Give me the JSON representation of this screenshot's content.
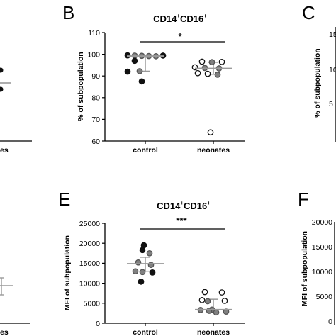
{
  "panels": {
    "B": {
      "letter": "B"
    },
    "C": {
      "letter": "C"
    },
    "E": {
      "letter": "E"
    },
    "F": {
      "letter": "F"
    }
  },
  "partial": {
    "A": {
      "xtick": "es"
    },
    "C": {
      "ylabel": "% of subpopulation",
      "ytick_top": "15",
      "ytick_mid": "10",
      "ytick_low": "5"
    },
    "D": {
      "xtick": "es"
    },
    "F": {
      "ylabel": "MFI of subpopulation",
      "yticks": [
        "20000",
        "15000",
        "10000",
        "5000",
        "0"
      ]
    }
  },
  "colors": {
    "dark": "#111111",
    "gray": "#808080",
    "median": "#9a9a9a",
    "open_fill": "#ffffff"
  },
  "chart_data": [
    {
      "panel": "B",
      "type": "scatter",
      "title_main": "CD14",
      "title_sup1": "+",
      "title_mid": "CD16",
      "title_sup2": "+",
      "ylabel": "% of subpopulation",
      "ylim": [
        60,
        110
      ],
      "yticks": [
        60,
        70,
        80,
        90,
        100,
        110
      ],
      "categories": [
        "control",
        "neonates"
      ],
      "significance": "*",
      "groups": [
        {
          "category": "control",
          "median": 99.2,
          "q1": 92.2,
          "q3": 99.4,
          "points": [
            {
              "v": 99.5,
              "s": "dark"
            },
            {
              "v": 99.4,
              "s": "gray"
            },
            {
              "v": 99.3,
              "s": "gray"
            },
            {
              "v": 99.2,
              "s": "gray"
            },
            {
              "v": 99.1,
              "s": "gray"
            },
            {
              "v": 99.4,
              "s": "dark"
            },
            {
              "v": 97.0,
              "s": "dark"
            },
            {
              "v": 92.2,
              "s": "gray"
            },
            {
              "v": 92.0,
              "s": "dark"
            },
            {
              "v": 87.5,
              "s": "dark"
            }
          ]
        },
        {
          "category": "neonates",
          "median": 93.5,
          "q1": 90.8,
          "q3": 96.3,
          "points": [
            {
              "v": 96.6,
              "s": "open"
            },
            {
              "v": 96.4,
              "s": "gray"
            },
            {
              "v": 96.5,
              "s": "open"
            },
            {
              "v": 94.0,
              "s": "open"
            },
            {
              "v": 93.7,
              "s": "gray"
            },
            {
              "v": 93.5,
              "s": "gray"
            },
            {
              "v": 91.3,
              "s": "open"
            },
            {
              "v": 91.0,
              "s": "open"
            },
            {
              "v": 90.6,
              "s": "gray"
            },
            {
              "v": 64.0,
              "s": "open"
            }
          ]
        }
      ]
    },
    {
      "panel": "E",
      "type": "scatter",
      "title_main": "CD14",
      "title_sup1": "+",
      "title_mid": "CD16",
      "title_sup2": "+",
      "ylabel": "MFI of subpopulation",
      "ylim": [
        0,
        25000
      ],
      "yticks": [
        0,
        5000,
        10000,
        15000,
        20000,
        25000
      ],
      "categories": [
        "control",
        "neonates"
      ],
      "significance": "***",
      "groups": [
        {
          "category": "control",
          "median": 14900,
          "q1": 13000,
          "q3": 16500,
          "points": [
            {
              "v": 19500,
              "s": "dark"
            },
            {
              "v": 18300,
              "s": "dark"
            },
            {
              "v": 17500,
              "s": "gray"
            },
            {
              "v": 15200,
              "s": "gray"
            },
            {
              "v": 14600,
              "s": "gray"
            },
            {
              "v": 13000,
              "s": "gray"
            },
            {
              "v": 12800,
              "s": "gray"
            },
            {
              "v": 12700,
              "s": "dark"
            },
            {
              "v": 10400,
              "s": "dark"
            }
          ]
        },
        {
          "category": "neonates",
          "median": 3400,
          "q1": 2900,
          "q3": 6000,
          "points": [
            {
              "v": 7800,
              "s": "open"
            },
            {
              "v": 7700,
              "s": "open"
            },
            {
              "v": 5800,
              "s": "open"
            },
            {
              "v": 5600,
              "s": "open"
            },
            {
              "v": 5500,
              "s": "gray"
            },
            {
              "v": 3400,
              "s": "gray"
            },
            {
              "v": 3300,
              "s": "gray"
            },
            {
              "v": 3100,
              "s": "gray"
            },
            {
              "v": 2900,
              "s": "gray"
            },
            {
              "v": 2700,
              "s": "gray"
            }
          ]
        }
      ]
    }
  ]
}
